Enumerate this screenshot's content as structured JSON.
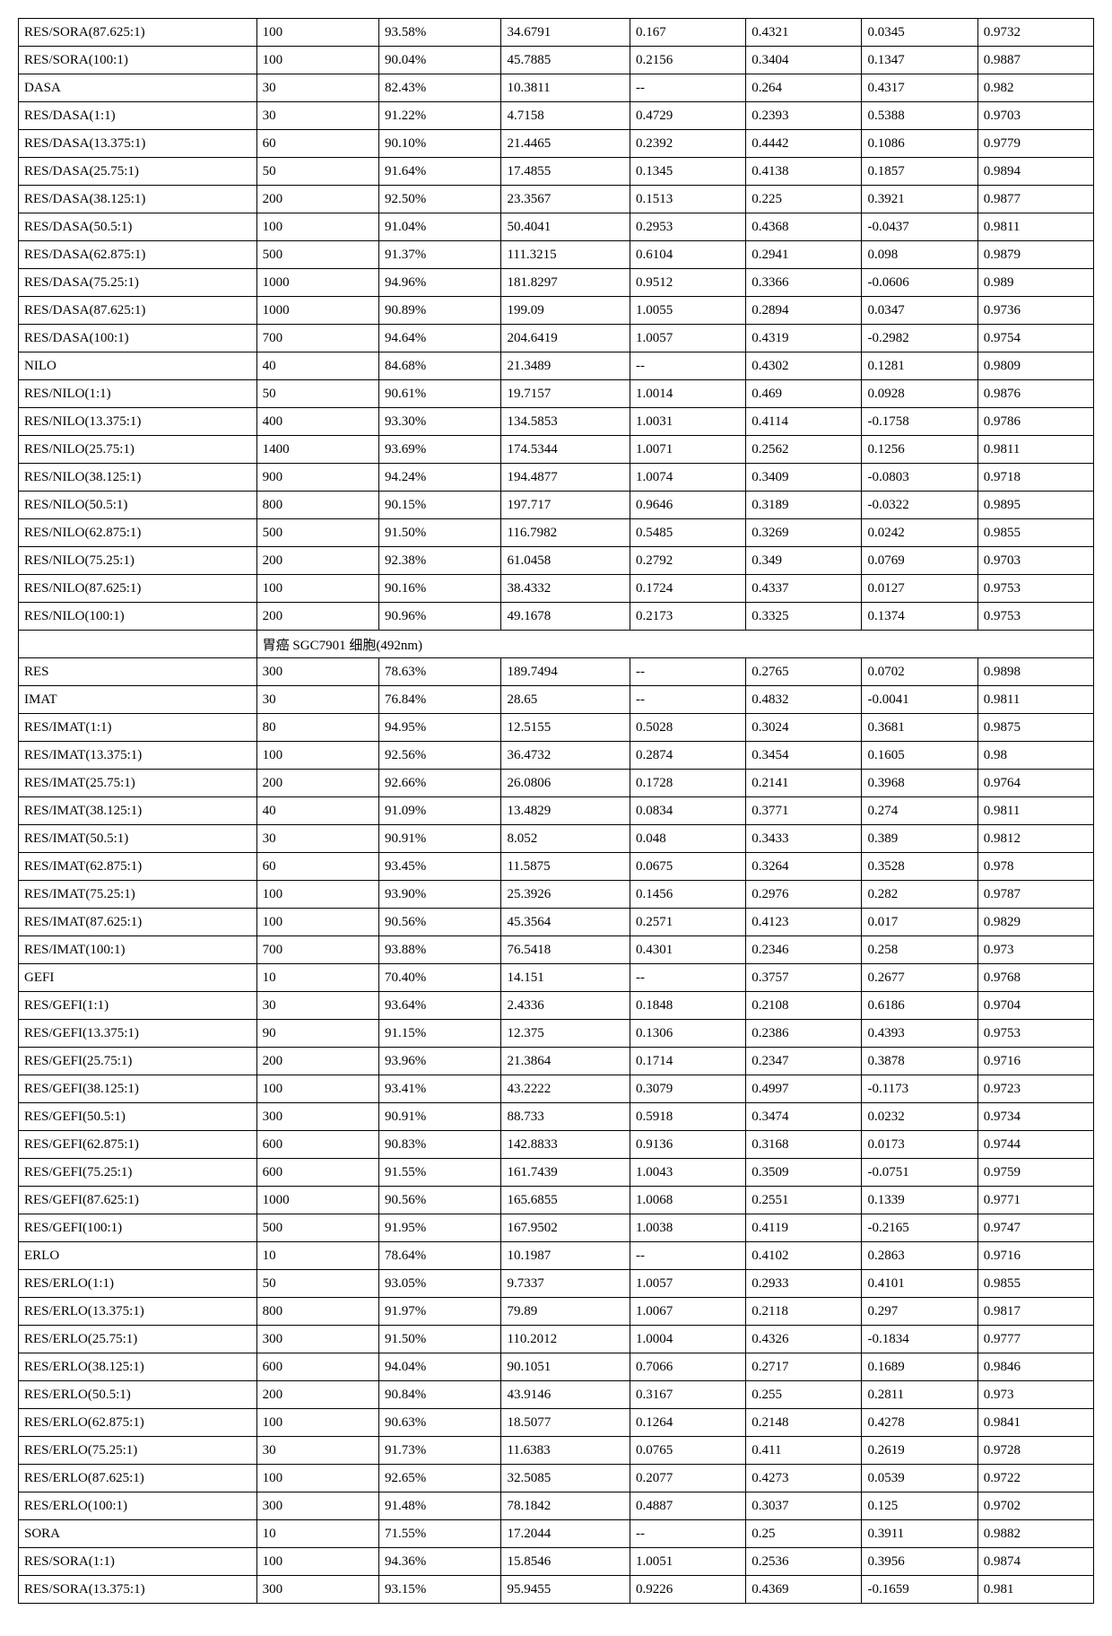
{
  "table": {
    "col_widths_pct": [
      18.5,
      9.5,
      9.5,
      10,
      9,
      9,
      9,
      9
    ],
    "font_family": "Times New Roman",
    "font_size_pt": 11,
    "border_color": "#000000",
    "background_color": "#ffffff",
    "rows": [
      [
        "RES/SORA(87.625:1)",
        "100",
        "93.58%",
        "34.6791",
        "0.167",
        "0.4321",
        "0.0345",
        "0.9732"
      ],
      [
        "RES/SORA(100:1)",
        "100",
        "90.04%",
        "45.7885",
        "0.2156",
        "0.3404",
        "0.1347",
        "0.9887"
      ],
      [
        "DASA",
        "30",
        "82.43%",
        "10.3811",
        "--",
        "0.264",
        "0.4317",
        "0.982"
      ],
      [
        "RES/DASA(1:1)",
        "30",
        "91.22%",
        "4.7158",
        "0.4729",
        "0.2393",
        "0.5388",
        "0.9703"
      ],
      [
        "RES/DASA(13.375:1)",
        "60",
        "90.10%",
        "21.4465",
        "0.2392",
        "0.4442",
        "0.1086",
        "0.9779"
      ],
      [
        "RES/DASA(25.75:1)",
        "50",
        "91.64%",
        "17.4855",
        "0.1345",
        "0.4138",
        "0.1857",
        "0.9894"
      ],
      [
        "RES/DASA(38.125:1)",
        "200",
        "92.50%",
        "23.3567",
        "0.1513",
        "0.225",
        "0.3921",
        "0.9877"
      ],
      [
        "RES/DASA(50.5:1)",
        "100",
        "91.04%",
        "50.4041",
        "0.2953",
        "0.4368",
        "-0.0437",
        "0.9811"
      ],
      [
        "RES/DASA(62.875:1)",
        "500",
        "91.37%",
        "111.3215",
        "0.6104",
        "0.2941",
        "0.098",
        "0.9879"
      ],
      [
        "RES/DASA(75.25:1)",
        "1000",
        "94.96%",
        "181.8297",
        "0.9512",
        "0.3366",
        "-0.0606",
        "0.989"
      ],
      [
        "RES/DASA(87.625:1)",
        "1000",
        "90.89%",
        "199.09",
        "1.0055",
        "0.2894",
        "0.0347",
        "0.9736"
      ],
      [
        "RES/DASA(100:1)",
        "700",
        "94.64%",
        "204.6419",
        "1.0057",
        "0.4319",
        "-0.2982",
        "0.9754"
      ],
      [
        "NILO",
        "40",
        "84.68%",
        "21.3489",
        "--",
        "0.4302",
        "0.1281",
        "0.9809"
      ],
      [
        "RES/NILO(1:1)",
        "50",
        "90.61%",
        "19.7157",
        "1.0014",
        "0.469",
        "0.0928",
        "0.9876"
      ],
      [
        "RES/NILO(13.375:1)",
        "400",
        "93.30%",
        "134.5853",
        "1.0031",
        "0.4114",
        "-0.1758",
        "0.9786"
      ],
      [
        "RES/NILO(25.75:1)",
        "1400",
        "93.69%",
        "174.5344",
        "1.0071",
        "0.2562",
        "0.1256",
        "0.9811"
      ],
      [
        "RES/NILO(38.125:1)",
        "900",
        "94.24%",
        "194.4877",
        "1.0074",
        "0.3409",
        "-0.0803",
        "0.9718"
      ],
      [
        "RES/NILO(50.5:1)",
        "800",
        "90.15%",
        "197.717",
        "0.9646",
        "0.3189",
        "-0.0322",
        "0.9895"
      ],
      [
        "RES/NILO(62.875:1)",
        "500",
        "91.50%",
        "116.7982",
        "0.5485",
        "0.3269",
        "0.0242",
        "0.9855"
      ],
      [
        "RES/NILO(75.25:1)",
        "200",
        "92.38%",
        "61.0458",
        "0.2792",
        "0.349",
        "0.0769",
        "0.9703"
      ],
      [
        "RES/NILO(87.625:1)",
        "100",
        "90.16%",
        "38.4332",
        "0.1724",
        "0.4337",
        "0.0127",
        "0.9753"
      ],
      [
        "RES/NILO(100:1)",
        "200",
        "90.96%",
        "49.1678",
        "0.2173",
        "0.3325",
        "0.1374",
        "0.9753"
      ],
      {
        "type": "section",
        "label": "胃癌 SGC7901 细胞(492nm)"
      },
      [
        "RES",
        "300",
        "78.63%",
        "189.7494",
        "--",
        "0.2765",
        "0.0702",
        "0.9898"
      ],
      [
        "IMAT",
        "30",
        "76.84%",
        "28.65",
        "--",
        "0.4832",
        "-0.0041",
        "0.9811"
      ],
      [
        "RES/IMAT(1:1)",
        "80",
        "94.95%",
        "12.5155",
        "0.5028",
        "0.3024",
        "0.3681",
        "0.9875"
      ],
      [
        "RES/IMAT(13.375:1)",
        "100",
        "92.56%",
        "36.4732",
        "0.2874",
        "0.3454",
        "0.1605",
        "0.98"
      ],
      [
        "RES/IMAT(25.75:1)",
        "200",
        "92.66%",
        "26.0806",
        "0.1728",
        "0.2141",
        "0.3968",
        "0.9764"
      ],
      [
        "RES/IMAT(38.125:1)",
        "40",
        "91.09%",
        "13.4829",
        "0.0834",
        "0.3771",
        "0.274",
        "0.9811"
      ],
      [
        "RES/IMAT(50.5:1)",
        "30",
        "90.91%",
        "8.052",
        "0.048",
        "0.3433",
        "0.389",
        "0.9812"
      ],
      [
        "RES/IMAT(62.875:1)",
        "60",
        "93.45%",
        "11.5875",
        "0.0675",
        "0.3264",
        "0.3528",
        "0.978"
      ],
      [
        "RES/IMAT(75.25:1)",
        "100",
        "93.90%",
        "25.3926",
        "0.1456",
        "0.2976",
        "0.282",
        "0.9787"
      ],
      [
        "RES/IMAT(87.625:1)",
        "100",
        "90.56%",
        "45.3564",
        "0.2571",
        "0.4123",
        "0.017",
        "0.9829"
      ],
      [
        "RES/IMAT(100:1)",
        "700",
        "93.88%",
        "76.5418",
        "0.4301",
        "0.2346",
        "0.258",
        "0.973"
      ],
      [
        "GEFI",
        "10",
        "70.40%",
        "14.151",
        "--",
        "0.3757",
        "0.2677",
        "0.9768"
      ],
      [
        "RES/GEFI(1:1)",
        "30",
        "93.64%",
        "2.4336",
        "0.1848",
        "0.2108",
        "0.6186",
        "0.9704"
      ],
      [
        "RES/GEFI(13.375:1)",
        "90",
        "91.15%",
        "12.375",
        "0.1306",
        "0.2386",
        "0.4393",
        "0.9753"
      ],
      [
        "RES/GEFI(25.75:1)",
        "200",
        "93.96%",
        "21.3864",
        "0.1714",
        "0.2347",
        "0.3878",
        "0.9716"
      ],
      [
        "RES/GEFI(38.125:1)",
        "100",
        "93.41%",
        "43.2222",
        "0.3079",
        "0.4997",
        "-0.1173",
        "0.9723"
      ],
      [
        "RES/GEFI(50.5:1)",
        "300",
        "90.91%",
        "88.733",
        "0.5918",
        "0.3474",
        "0.0232",
        "0.9734"
      ],
      [
        "RES/GEFI(62.875:1)",
        "600",
        "90.83%",
        "142.8833",
        "0.9136",
        "0.3168",
        "0.0173",
        "0.9744"
      ],
      [
        "RES/GEFI(75.25:1)",
        "600",
        "91.55%",
        "161.7439",
        "1.0043",
        "0.3509",
        "-0.0751",
        "0.9759"
      ],
      [
        "RES/GEFI(87.625:1)",
        "1000",
        "90.56%",
        "165.6855",
        "1.0068",
        "0.2551",
        "0.1339",
        "0.9771"
      ],
      [
        "RES/GEFI(100:1)",
        "500",
        "91.95%",
        "167.9502",
        "1.0038",
        "0.4119",
        "-0.2165",
        "0.9747"
      ],
      [
        "ERLO",
        "10",
        "78.64%",
        "10.1987",
        "--",
        "0.4102",
        "0.2863",
        "0.9716"
      ],
      [
        "RES/ERLO(1:1)",
        "50",
        "93.05%",
        "9.7337",
        "1.0057",
        "0.2933",
        "0.4101",
        "0.9855"
      ],
      [
        "RES/ERLO(13.375:1)",
        "800",
        "91.97%",
        "79.89",
        "1.0067",
        "0.2118",
        "0.297",
        "0.9817"
      ],
      [
        "RES/ERLO(25.75:1)",
        "300",
        "91.50%",
        "110.2012",
        "1.0004",
        "0.4326",
        "-0.1834",
        "0.9777"
      ],
      [
        "RES/ERLO(38.125:1)",
        "600",
        "94.04%",
        "90.1051",
        "0.7066",
        "0.2717",
        "0.1689",
        "0.9846"
      ],
      [
        "RES/ERLO(50.5:1)",
        "200",
        "90.84%",
        "43.9146",
        "0.3167",
        "0.255",
        "0.2811",
        "0.973"
      ],
      [
        "RES/ERLO(62.875:1)",
        "100",
        "90.63%",
        "18.5077",
        "0.1264",
        "0.2148",
        "0.4278",
        "0.9841"
      ],
      [
        "RES/ERLO(75.25:1)",
        "30",
        "91.73%",
        "11.6383",
        "0.0765",
        "0.411",
        "0.2619",
        "0.9728"
      ],
      [
        "RES/ERLO(87.625:1)",
        "100",
        "92.65%",
        "32.5085",
        "0.2077",
        "0.4273",
        "0.0539",
        "0.9722"
      ],
      [
        "RES/ERLO(100:1)",
        "300",
        "91.48%",
        "78.1842",
        "0.4887",
        "0.3037",
        "0.125",
        "0.9702"
      ],
      [
        "SORA",
        "10",
        "71.55%",
        "17.2044",
        "--",
        "0.25",
        "0.3911",
        "0.9882"
      ],
      [
        "RES/SORA(1:1)",
        "100",
        "94.36%",
        "15.8546",
        "1.0051",
        "0.2536",
        "0.3956",
        "0.9874"
      ],
      [
        "RES/SORA(13.375:1)",
        "300",
        "93.15%",
        "95.9455",
        "0.9226",
        "0.4369",
        "-0.1659",
        "0.981"
      ]
    ]
  }
}
